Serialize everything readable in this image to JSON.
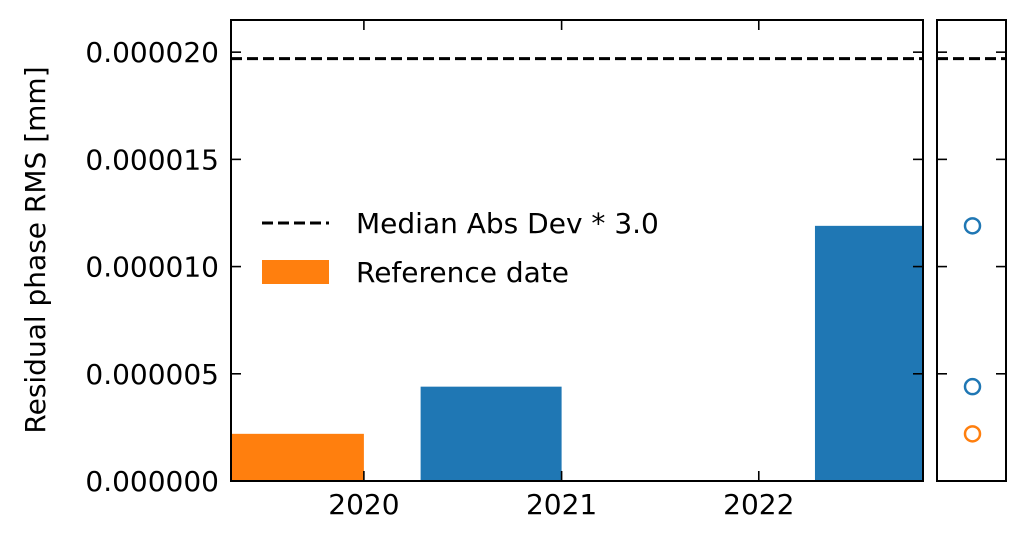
{
  "chart_data": {
    "type": "bar",
    "ylabel": "Residual phase RMS [mm]",
    "xlabel": "",
    "ylim": [
      0,
      2.15e-05
    ],
    "xlim": [
      "2019-04-30",
      "2022-11-01"
    ],
    "x_ticks": [
      {
        "date": "2020-01-01",
        "label": "2020"
      },
      {
        "date": "2021-01-01",
        "label": "2021"
      },
      {
        "date": "2022-01-01",
        "label": "2022"
      }
    ],
    "y_ticks": [
      {
        "value": 0,
        "label": "0.000000"
      },
      {
        "value": 5e-06,
        "label": "0.000005"
      },
      {
        "value": 1e-05,
        "label": "0.000010"
      },
      {
        "value": 1.5e-05,
        "label": "0.000015"
      },
      {
        "value": 2e-05,
        "label": "0.000020"
      }
    ],
    "bars": [
      {
        "start": "2019-04-30",
        "end": "2020-01-01",
        "value": 2.2e-06,
        "color": "#ff7f0e",
        "reference": true
      },
      {
        "start": "2020-04-15",
        "end": "2021-01-01",
        "value": 4.4e-06,
        "color": "#1f77b4",
        "reference": false
      },
      {
        "start": "2022-04-15",
        "end": "2022-11-01",
        "value": 1.19e-05,
        "color": "#1f77b4",
        "reference": false
      }
    ],
    "threshold": {
      "value": 1.97e-05,
      "label": "Median Abs Dev * 3.0",
      "style": "dashed",
      "color": "#000000"
    },
    "side_points": [
      {
        "value": 1.19e-05,
        "color": "#1f77b4"
      },
      {
        "value": 4.4e-06,
        "color": "#1f77b4"
      },
      {
        "value": 2.2e-06,
        "color": "#ff7f0e"
      }
    ],
    "legend": {
      "placement": "center-left",
      "entries": [
        {
          "label": "Median Abs Dev * 3.0",
          "kind": "dashed-line",
          "color": "#000000"
        },
        {
          "label": "Reference date",
          "kind": "patch",
          "color": "#ff7f0e"
        }
      ]
    },
    "grid": false
  }
}
